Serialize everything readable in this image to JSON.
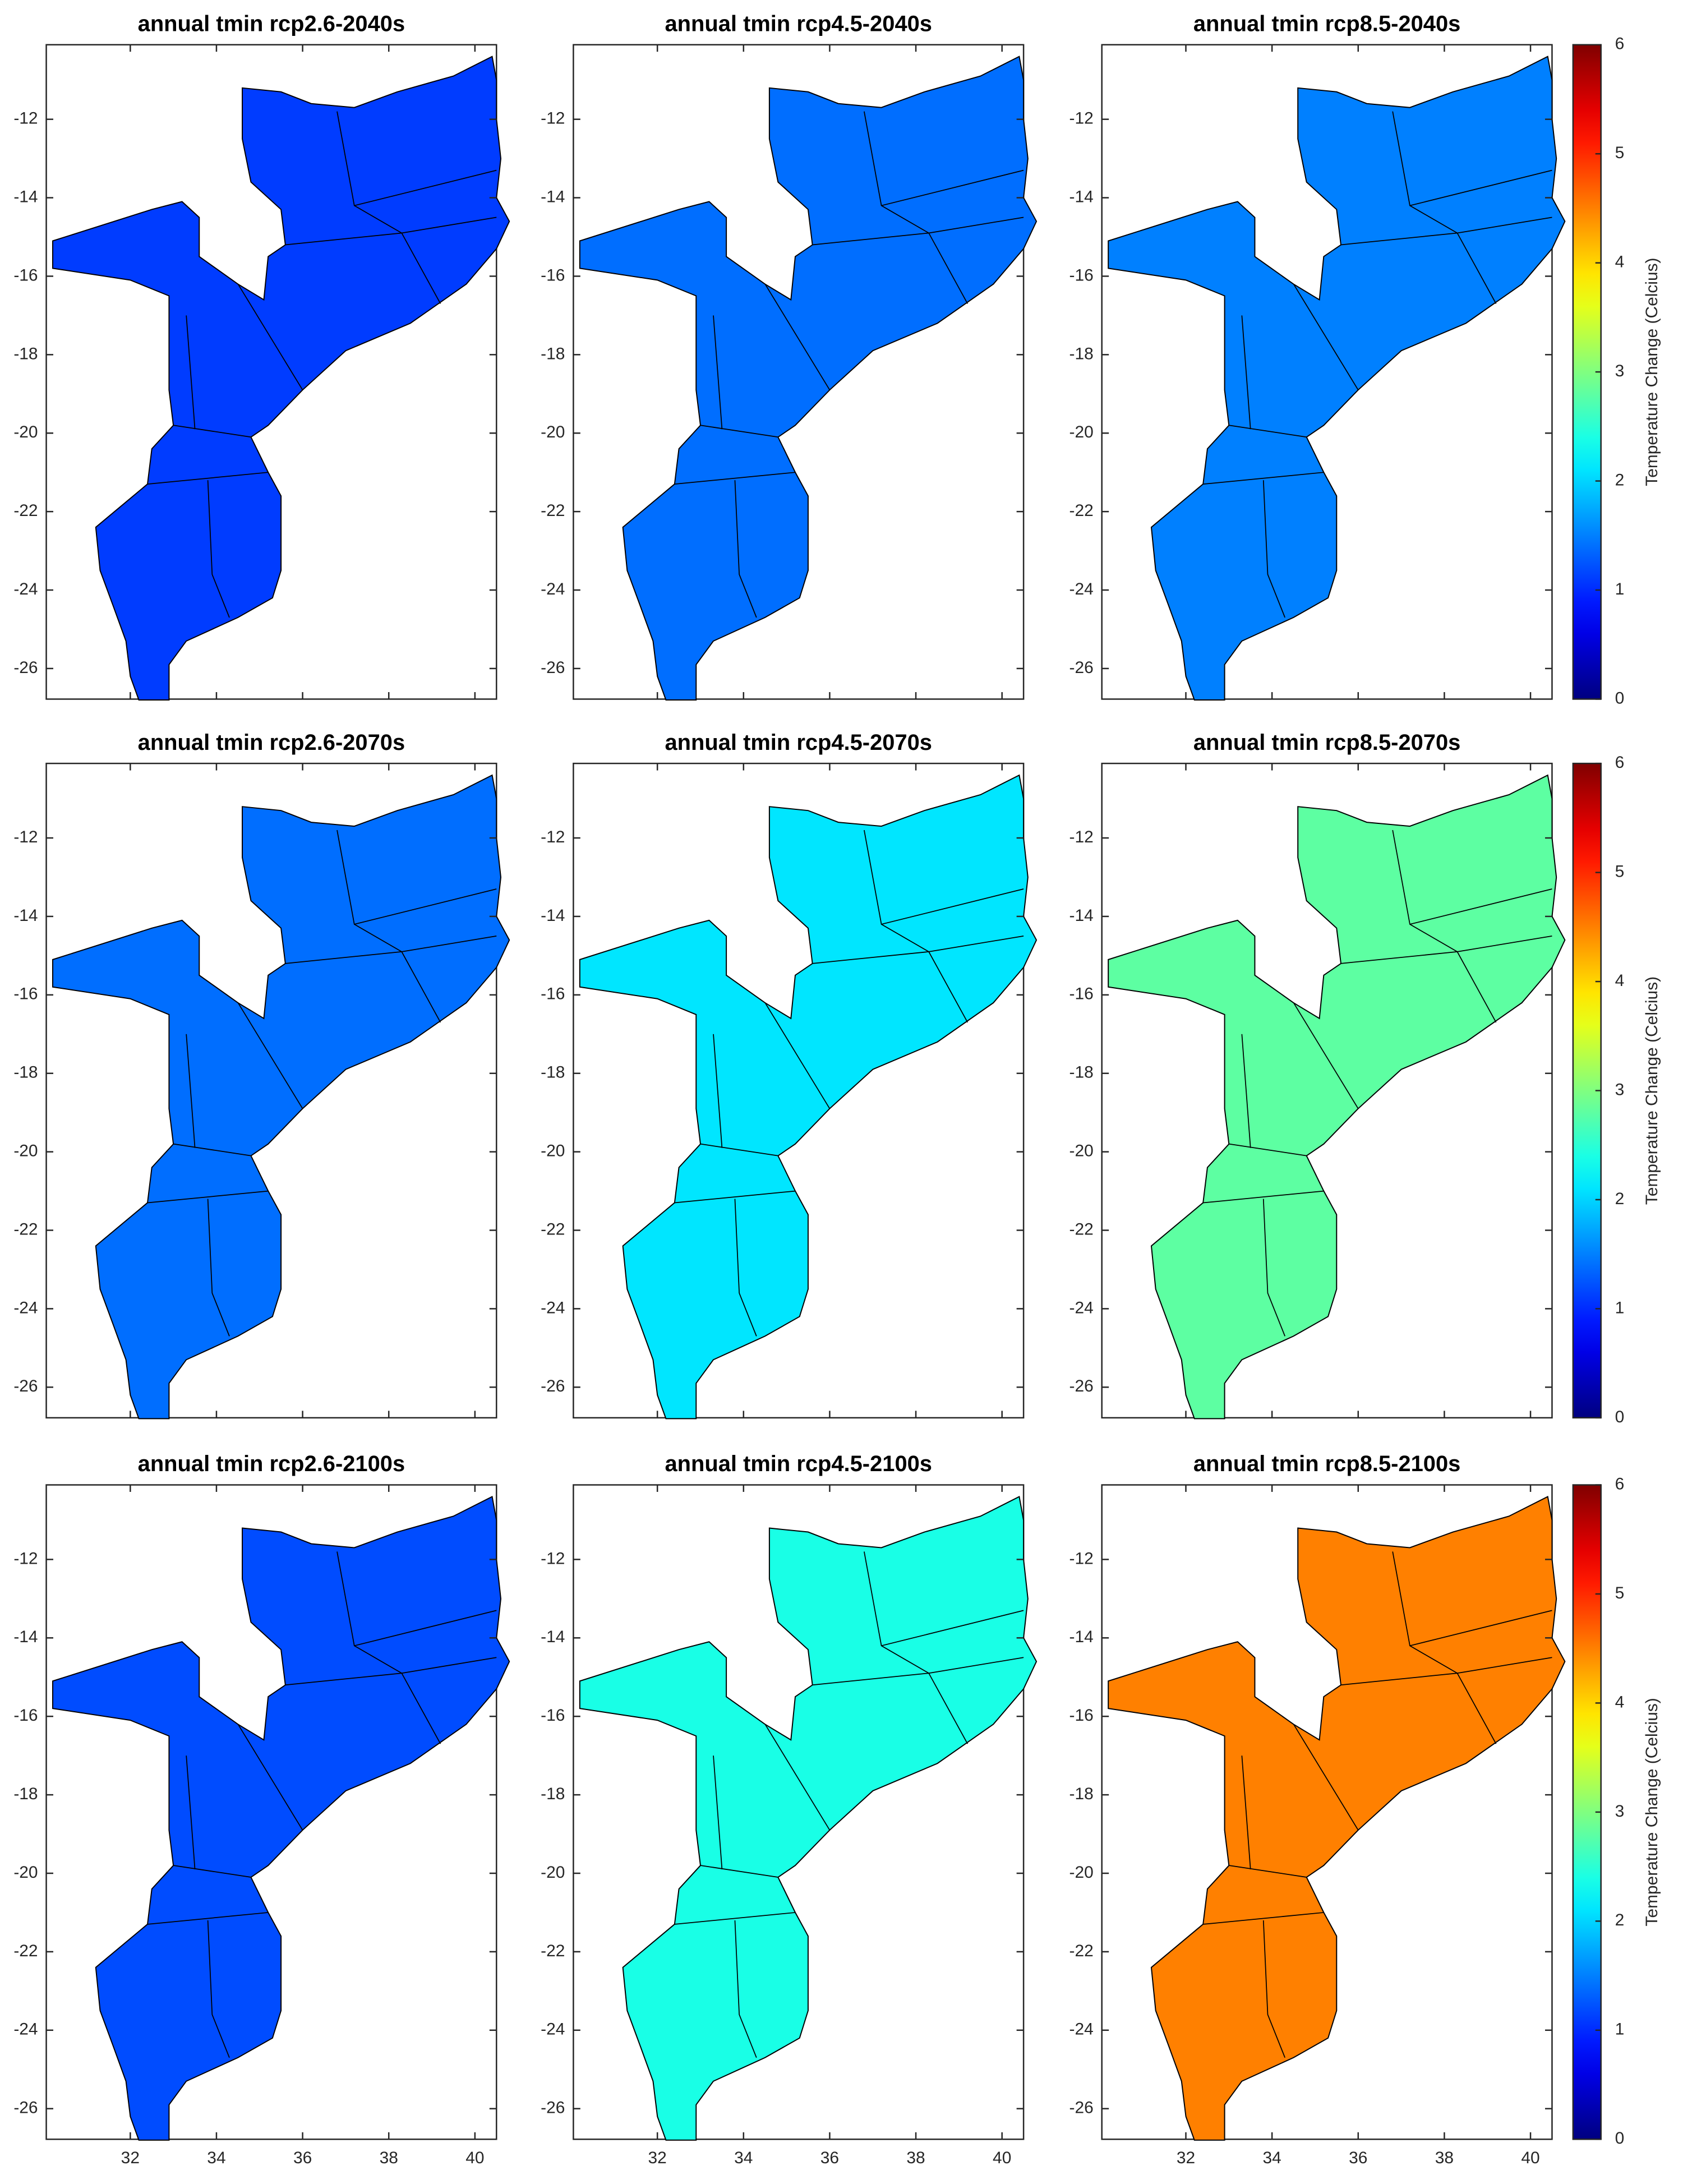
{
  "chart_data": {
    "type": "map",
    "panels": [
      {
        "title": "annual tmin rcp2.6-2040s",
        "value": 1.1
      },
      {
        "title": "annual tmin rcp4.5-2040s",
        "value": 1.4
      },
      {
        "title": "annual tmin rcp8.5-2040s",
        "value": 1.5
      },
      {
        "title": "annual tmin rcp2.6-2070s",
        "value": 1.4
      },
      {
        "title": "annual tmin rcp4.5-2070s",
        "value": 2.1
      },
      {
        "title": "annual tmin rcp8.5-2070s",
        "value": 2.8
      },
      {
        "title": "annual tmin rcp2.6-2100s",
        "value": 1.2
      },
      {
        "title": "annual tmin rcp4.5-2100s",
        "value": 2.4
      },
      {
        "title": "annual tmin rcp8.5-2100s",
        "value": 4.5
      }
    ],
    "xlim": [
      30.05,
      40.5
    ],
    "ylim": [
      -26.78,
      -10.1
    ],
    "xticks": [
      32,
      34,
      36,
      38,
      40
    ],
    "yticks": [
      -26,
      -24,
      -22,
      -20,
      -18,
      -16,
      -14,
      -12
    ],
    "colorbar": {
      "label": "Temperature Change (Celcius)",
      "lim": [
        0,
        6
      ],
      "ticks": [
        0,
        1,
        2,
        3,
        4,
        5,
        6
      ],
      "colormap": "jet"
    }
  }
}
